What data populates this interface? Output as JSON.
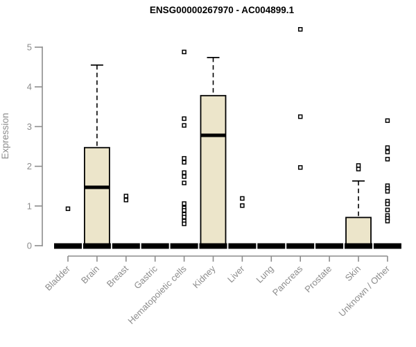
{
  "title": "ENSG00000267970 - AC004899.1",
  "y_axis": {
    "label": "Expression"
  },
  "colors": {
    "box_fill": "#ece5ca",
    "box_stroke": "#000000",
    "axis": "#8c8c8c",
    "tick_label": "#8c8c8c",
    "title": "#000000"
  },
  "chart_data": {
    "type": "boxplot",
    "title": "ENSG00000267970 - AC004899.1",
    "xlabel": "",
    "ylabel": "Expression",
    "ylim": [
      0,
      5.5
    ],
    "yticks": [
      0,
      1,
      2,
      3,
      4,
      5
    ],
    "grid": false,
    "legend": "none",
    "categories": [
      "Bladder",
      "Brain",
      "Breast",
      "Gastric",
      "Hematopoietic cells",
      "Kidney",
      "Liver",
      "Lung",
      "Pancreas",
      "Prostate",
      "Skin",
      "Unknown / Other"
    ],
    "series": [
      {
        "category": "Bladder",
        "low": 0,
        "q1": 0,
        "median": 0,
        "q3": 0,
        "high": 0,
        "outliers": [
          0.93
        ]
      },
      {
        "category": "Brain",
        "low": 0,
        "q1": 0,
        "median": 1.47,
        "q3": 2.47,
        "high": 4.55,
        "outliers": []
      },
      {
        "category": "Breast",
        "low": 0,
        "q1": 0,
        "median": 0,
        "q3": 0,
        "high": 0,
        "outliers": [
          1.25,
          1.15
        ]
      },
      {
        "category": "Gastric",
        "low": 0,
        "q1": 0,
        "median": 0,
        "q3": 0,
        "high": 0,
        "outliers": []
      },
      {
        "category": "Hematopoietic cells",
        "low": 0,
        "q1": 0,
        "median": 0,
        "q3": 0,
        "high": 0,
        "outliers": [
          4.88,
          3.2,
          3.03,
          2.2,
          2.1,
          1.84,
          1.74,
          1.58,
          1.06,
          0.95,
          0.89,
          0.79,
          0.72,
          0.62,
          0.55
        ]
      },
      {
        "category": "Kidney",
        "low": 0,
        "q1": 0,
        "median": 2.78,
        "q3": 3.78,
        "high": 4.74,
        "outliers": []
      },
      {
        "category": "Liver",
        "low": 0,
        "q1": 0,
        "median": 0,
        "q3": 0,
        "high": 0,
        "outliers": [
          1.19,
          1.01
        ]
      },
      {
        "category": "Lung",
        "low": 0,
        "q1": 0,
        "median": 0,
        "q3": 0,
        "high": 0,
        "outliers": []
      },
      {
        "category": "Pancreas",
        "low": 0,
        "q1": 0,
        "median": 0,
        "q3": 0,
        "high": 0,
        "outliers": [
          5.45,
          3.25,
          1.97
        ]
      },
      {
        "category": "Prostate",
        "low": 0,
        "q1": 0,
        "median": 0,
        "q3": 0,
        "high": 0,
        "outliers": []
      },
      {
        "category": "Skin",
        "low": 0,
        "q1": 0,
        "median": 0,
        "q3": 0.71,
        "high": 1.63,
        "outliers": [
          2.02,
          1.93
        ]
      },
      {
        "category": "Unknown / Other",
        "low": 0,
        "q1": 0,
        "median": 0,
        "q3": 0,
        "high": 0,
        "outliers": [
          3.15,
          2.47,
          2.36,
          2.18,
          1.51,
          1.44,
          1.37,
          1.12,
          1.05,
          0.9,
          0.76,
          0.69,
          0.62
        ]
      }
    ]
  }
}
